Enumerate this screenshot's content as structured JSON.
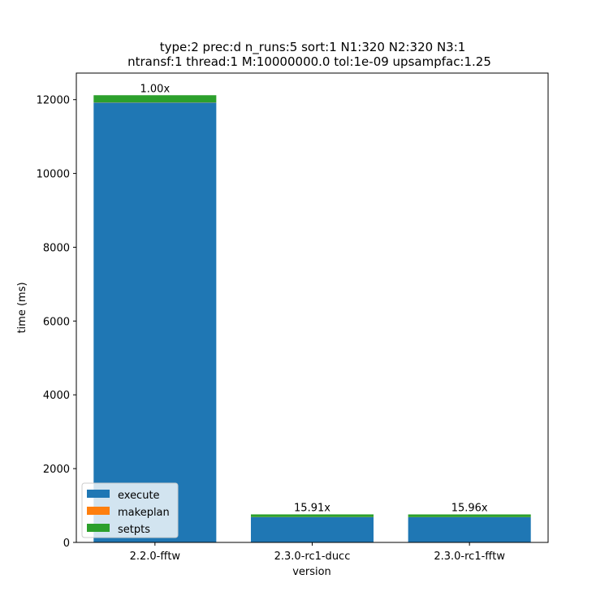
{
  "chart_data": {
    "type": "bar",
    "stacked": true,
    "title_lines": [
      "type:2 prec:d n_runs:5 sort:1 N1:320 N2:320 N3:1",
      "ntransf:1 thread:1 M:10000000.0 tol:1e-09 upsampfac:1.25"
    ],
    "xlabel": "version",
    "ylabel": "time (ms)",
    "categories": [
      "2.2.0-fftw",
      "2.3.0-rc1-ducc",
      "2.3.0-rc1-fftw"
    ],
    "series": [
      {
        "name": "execute",
        "color": "#1f77b4",
        "values": [
          11920,
          685,
          683
        ]
      },
      {
        "name": "makeplan",
        "color": "#ff7f0e",
        "values": [
          5,
          3,
          3
        ]
      },
      {
        "name": "setpts",
        "color": "#2ca02c",
        "values": [
          195,
          72,
          73
        ]
      }
    ],
    "bar_labels": [
      "1.00x",
      "15.91x",
      "15.96x"
    ],
    "ylim": [
      0,
      12720
    ],
    "yticks": [
      0,
      2000,
      4000,
      6000,
      8000,
      10000,
      12000
    ],
    "grid": false,
    "legend_position": "lower-left"
  }
}
